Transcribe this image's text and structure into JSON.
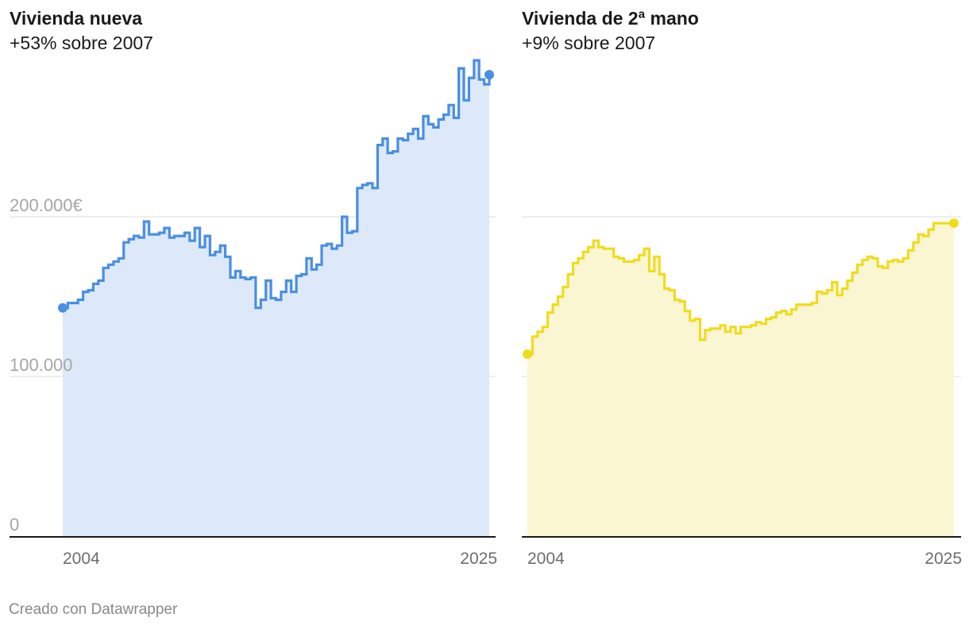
{
  "chart_data": [
    {
      "type": "area",
      "title": "Vivienda nueva",
      "subtitle": "+53% sobre 2007",
      "color": "#4a8fe2",
      "fill": "#dde9f8",
      "ylim": [
        0,
        300000
      ],
      "xlim": [
        2004,
        2025
      ],
      "y_ticks": [
        {
          "value": 0,
          "label": "0"
        },
        {
          "value": 100000,
          "label": "100.000"
        },
        {
          "value": 200000,
          "label": "200.000€"
        }
      ],
      "x_ticks": [
        {
          "value": 2004,
          "label": "2004"
        },
        {
          "value": 2025,
          "label": "2025"
        }
      ],
      "grid": true,
      "x": [
        2004.0,
        2004.25,
        2004.5,
        2004.75,
        2005.0,
        2005.25,
        2005.5,
        2005.75,
        2006.0,
        2006.25,
        2006.5,
        2006.75,
        2007.0,
        2007.25,
        2007.5,
        2007.75,
        2008.0,
        2008.25,
        2008.5,
        2008.75,
        2009.0,
        2009.25,
        2009.5,
        2009.75,
        2010.0,
        2010.25,
        2010.5,
        2010.75,
        2011.0,
        2011.25,
        2011.5,
        2011.75,
        2012.0,
        2012.25,
        2012.5,
        2012.75,
        2013.0,
        2013.25,
        2013.5,
        2013.75,
        2014.0,
        2014.25,
        2014.5,
        2014.75,
        2015.0,
        2015.25,
        2015.5,
        2015.75,
        2016.0,
        2016.25,
        2016.5,
        2016.75,
        2017.0,
        2017.25,
        2017.5,
        2017.75,
        2018.0,
        2018.25,
        2018.5,
        2018.75,
        2019.0,
        2019.25,
        2019.5,
        2019.75,
        2020.0,
        2020.25,
        2020.5,
        2020.75,
        2021.0,
        2021.25,
        2021.5,
        2021.75,
        2022.0,
        2022.25,
        2022.5,
        2022.75,
        2023.0,
        2023.25,
        2023.5,
        2023.75,
        2024.0,
        2024.25,
        2024.5,
        2024.75,
        2025.0
      ],
      "values": [
        143000,
        146000,
        146000,
        148000,
        153000,
        154000,
        158000,
        160000,
        168000,
        170000,
        172000,
        174000,
        184000,
        186000,
        188000,
        187000,
        197000,
        189000,
        189000,
        190000,
        193000,
        187000,
        188000,
        188000,
        190000,
        185000,
        193000,
        181000,
        188000,
        176000,
        178000,
        182000,
        175000,
        162000,
        166000,
        162000,
        161000,
        162000,
        143000,
        148000,
        160000,
        149000,
        148000,
        153000,
        160000,
        153000,
        163000,
        164000,
        174000,
        167000,
        170000,
        182000,
        183000,
        180000,
        182000,
        200000,
        190000,
        191000,
        218000,
        220000,
        221000,
        218000,
        245000,
        249000,
        240000,
        241000,
        249000,
        248000,
        252000,
        255000,
        249000,
        263000,
        258000,
        256000,
        261000,
        264000,
        270000,
        262000,
        293000,
        273000,
        287000,
        298000,
        286000,
        283000,
        289000
      ]
    },
    {
      "type": "area",
      "title": "Vivienda de 2ª mano",
      "subtitle": "+9% sobre 2007",
      "color": "#f0dc1f",
      "fill": "#faf6d2",
      "ylim": [
        0,
        300000
      ],
      "xlim": [
        2004,
        2025
      ],
      "y_ticks": [
        {
          "value": 0,
          "label": ""
        },
        {
          "value": 100000,
          "label": ""
        },
        {
          "value": 200000,
          "label": ""
        }
      ],
      "x_ticks": [
        {
          "value": 2004,
          "label": "2004"
        },
        {
          "value": 2025,
          "label": "2025"
        }
      ],
      "grid": true,
      "x": [
        2004.0,
        2004.25,
        2004.5,
        2004.75,
        2005.0,
        2005.25,
        2005.5,
        2005.75,
        2006.0,
        2006.25,
        2006.5,
        2006.75,
        2007.0,
        2007.25,
        2007.5,
        2007.75,
        2008.0,
        2008.25,
        2008.5,
        2008.75,
        2009.0,
        2009.25,
        2009.5,
        2009.75,
        2010.0,
        2010.25,
        2010.5,
        2010.75,
        2011.0,
        2011.25,
        2011.5,
        2011.75,
        2012.0,
        2012.25,
        2012.5,
        2012.75,
        2013.0,
        2013.25,
        2013.5,
        2013.75,
        2014.0,
        2014.25,
        2014.5,
        2014.75,
        2015.0,
        2015.25,
        2015.5,
        2015.75,
        2016.0,
        2016.25,
        2016.5,
        2016.75,
        2017.0,
        2017.25,
        2017.5,
        2017.75,
        2018.0,
        2018.25,
        2018.5,
        2018.75,
        2019.0,
        2019.25,
        2019.5,
        2019.75,
        2020.0,
        2020.25,
        2020.5,
        2020.75,
        2021.0,
        2021.25,
        2021.5,
        2021.75,
        2022.0,
        2022.25,
        2022.5,
        2022.75,
        2023.0,
        2023.25,
        2023.5,
        2023.75,
        2024.0,
        2024.25,
        2024.5,
        2024.75,
        2025.0
      ],
      "values": [
        114000,
        125000,
        128000,
        131000,
        140000,
        145000,
        150000,
        156000,
        164000,
        171000,
        174000,
        178000,
        181000,
        185000,
        181000,
        180000,
        180000,
        175000,
        174000,
        172000,
        172000,
        173000,
        176000,
        180000,
        166000,
        175000,
        164000,
        155000,
        154000,
        148000,
        147000,
        141000,
        135000,
        136000,
        123000,
        129000,
        130000,
        130000,
        132000,
        128000,
        131000,
        127000,
        131000,
        131000,
        132000,
        134000,
        133000,
        136000,
        137000,
        140000,
        141000,
        139000,
        142000,
        145000,
        145000,
        145000,
        146000,
        153000,
        152000,
        154000,
        159000,
        151000,
        155000,
        160000,
        165000,
        170000,
        173000,
        175000,
        174000,
        169000,
        168000,
        172000,
        173000,
        172000,
        174000,
        179000,
        184000,
        189000,
        188000,
        192000,
        196000,
        196000,
        196000,
        196000,
        196000
      ]
    }
  ],
  "footer": "Creado con Datawrapper"
}
